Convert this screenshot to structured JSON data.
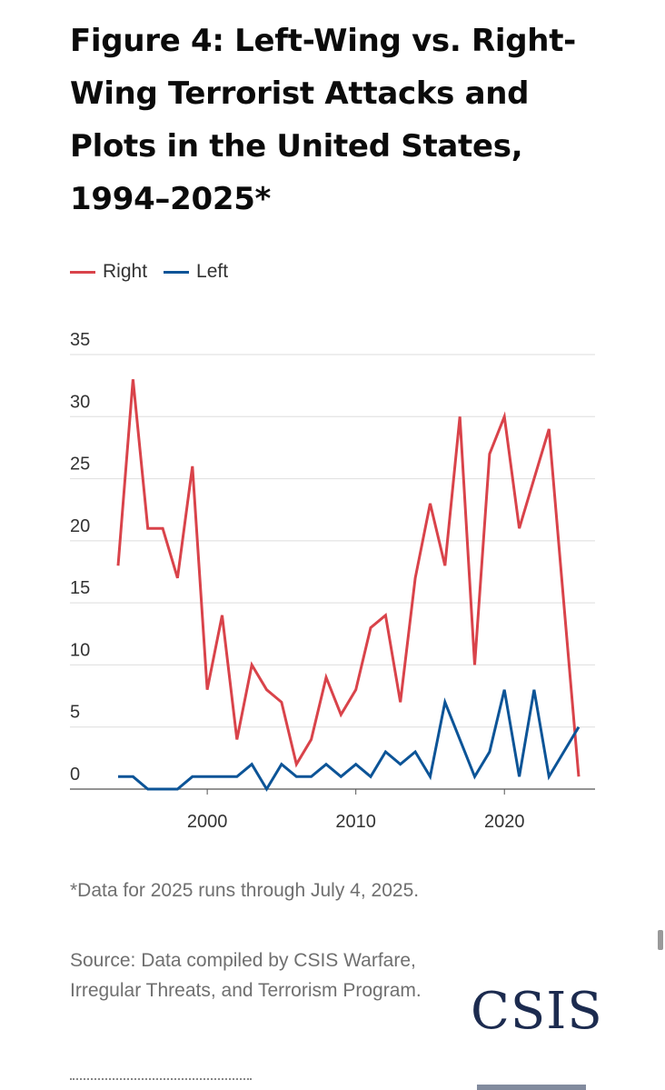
{
  "title": "Figure 4: Left-Wing vs. Right-Wing Terrorist Attacks and Plots in the United States, 1994–2025*",
  "legend": [
    {
      "name": "Right",
      "color": "#d9434a"
    },
    {
      "name": "Left",
      "color": "#0c5497"
    }
  ],
  "chart_data": {
    "type": "line",
    "title": "Figure 4: Left-Wing vs. Right-Wing Terrorist Attacks and Plots in the United States, 1994–2025*",
    "xlabel": "",
    "ylabel": "",
    "xlim": [
      1994,
      2025
    ],
    "ylim": [
      0,
      35
    ],
    "yticks": [
      0,
      5,
      10,
      15,
      20,
      25,
      30,
      35
    ],
    "xticks": [
      2000,
      2010,
      2020
    ],
    "grid": "horizontal",
    "legend_position": "top-left",
    "x": [
      1994,
      1995,
      1996,
      1997,
      1998,
      1999,
      2000,
      2001,
      2002,
      2003,
      2004,
      2005,
      2006,
      2007,
      2008,
      2009,
      2010,
      2011,
      2012,
      2013,
      2014,
      2015,
      2016,
      2017,
      2018,
      2019,
      2020,
      2021,
      2022,
      2023,
      2024,
      2025
    ],
    "series": [
      {
        "name": "Right",
        "color": "#d9434a",
        "values": [
          18,
          33,
          21,
          21,
          17,
          26,
          8,
          14,
          4,
          10,
          8,
          7,
          2,
          4,
          9,
          6,
          8,
          13,
          14,
          7,
          17,
          23,
          18,
          30,
          10,
          27,
          30,
          21,
          25,
          29,
          15,
          1
        ]
      },
      {
        "name": "Left",
        "color": "#0c5497",
        "values": [
          1,
          1,
          0,
          0,
          0,
          1,
          1,
          1,
          1,
          2,
          0,
          2,
          1,
          1,
          2,
          1,
          2,
          1,
          3,
          2,
          3,
          1,
          7,
          4,
          1,
          3,
          8,
          1,
          8,
          1,
          3,
          5
        ]
      }
    ]
  },
  "footnote": "*Data for 2025 runs through July 4, 2025.",
  "source": "Source: Data compiled by CSIS Warfare, Irregular Threats, and Terrorism Program.",
  "logo": "CSIS"
}
